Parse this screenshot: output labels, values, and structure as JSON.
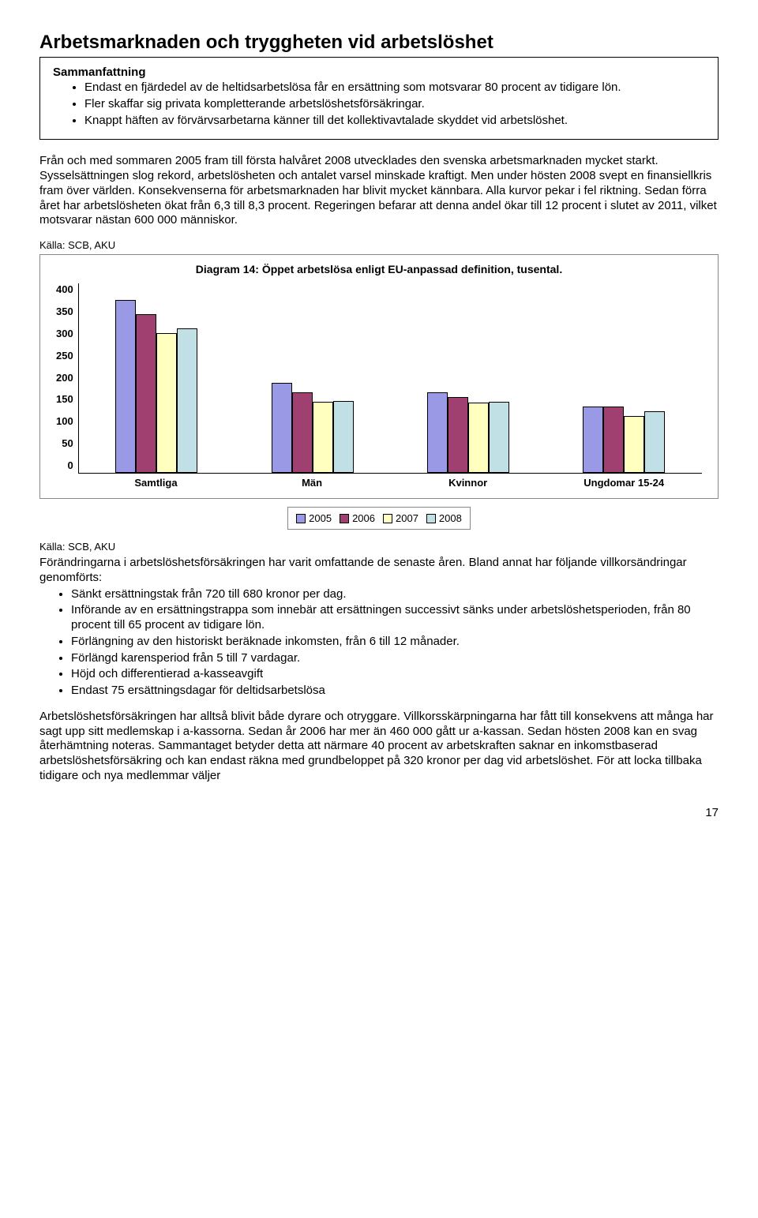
{
  "title": "Arbetsmarknaden och tryggheten vid arbetslöshet",
  "summary": {
    "heading": "Sammanfattning",
    "bullets": [
      "Endast en fjärdedel av de heltidsarbetslösa får en ersättning som motsvarar 80 procent av tidigare lön.",
      "Fler skaffar sig privata kompletterande arbetslöshetsförsäkringar.",
      "Knappt häften av förvärvsarbetarna känner till det kollektivavtalade skyddet vid arbetslöshet."
    ]
  },
  "para1": "Från och med sommaren 2005 fram till första halvåret 2008 utvecklades den svenska arbetsmarknaden mycket starkt. Sysselsättningen slog rekord, arbetslösheten och antalet varsel minskade kraftigt. Men under hösten 2008 svept en finansiellkris fram över världen. Konsekvenserna för arbetsmarknaden har blivit mycket kännbara. Alla kurvor pekar i fel riktning. Sedan förra året har arbetslösheten ökat från 6,3 till 8,3 procent. Regeringen befarar att denna andel ökar till 12 procent i slutet av 2011, vilket motsvarar nästan 600 000 människor.",
  "source1": "Källa: SCB, AKU",
  "chart": {
    "title": "Diagram 14: Öppet arbetslösa enligt EU-anpassad definition, tusental.",
    "categories": [
      "Samtliga",
      "Män",
      "Kvinnor",
      "Ungdomar 15-24"
    ],
    "series": [
      "2005",
      "2006",
      "2007",
      "2008"
    ],
    "colors": [
      "#9999e6",
      "#a04070",
      "#ffffc0",
      "#c0e0e6"
    ],
    "ylim": [
      0,
      400
    ],
    "ytick_step": 50,
    "values": [
      [
        365,
        335,
        295,
        305
      ],
      [
        190,
        170,
        150,
        152
      ],
      [
        170,
        160,
        148,
        150
      ],
      [
        140,
        140,
        120,
        130
      ]
    ]
  },
  "source2": "Källa: SCB, AKU",
  "para2": "Förändringarna i arbetslöshetsförsäkringen har varit omfattande de senaste åren. Bland annat har följande villkorsändringar genomförts:",
  "bullets2": [
    "Sänkt ersättningstak från 720 till 680 kronor per dag.",
    "Införande av en ersättningstrappa som innebär att ersättningen successivt sänks under arbetslöshetsperioden, från 80 procent till 65 procent av tidigare lön.",
    "Förlängning av den historiskt beräknade inkomsten, från 6 till 12 månader.",
    "Förlängd karensperiod från 5 till 7 vardagar.",
    "Höjd och differentierad a-kasseavgift",
    "Endast 75 ersättningsdagar för deltidsarbetslösa"
  ],
  "para3": "Arbetslöshetsförsäkringen har alltså blivit både dyrare och otryggare. Villkorsskärpningarna har fått till konsekvens att många har sagt upp sitt medlemskap i a-kassorna. Sedan år 2006 har mer än 460 000 gått ur a-kassan. Sedan hösten 2008 kan en svag återhämtning noteras. Sammantaget betyder detta att närmare 40 procent av arbetskraften saknar en inkomstbaserad arbetslöshetsförsäkring och kan endast räkna med grundbeloppet på 320 kronor per dag vid arbetslöshet. För att locka tillbaka tidigare och nya medlemmar väljer",
  "page_number": "17"
}
